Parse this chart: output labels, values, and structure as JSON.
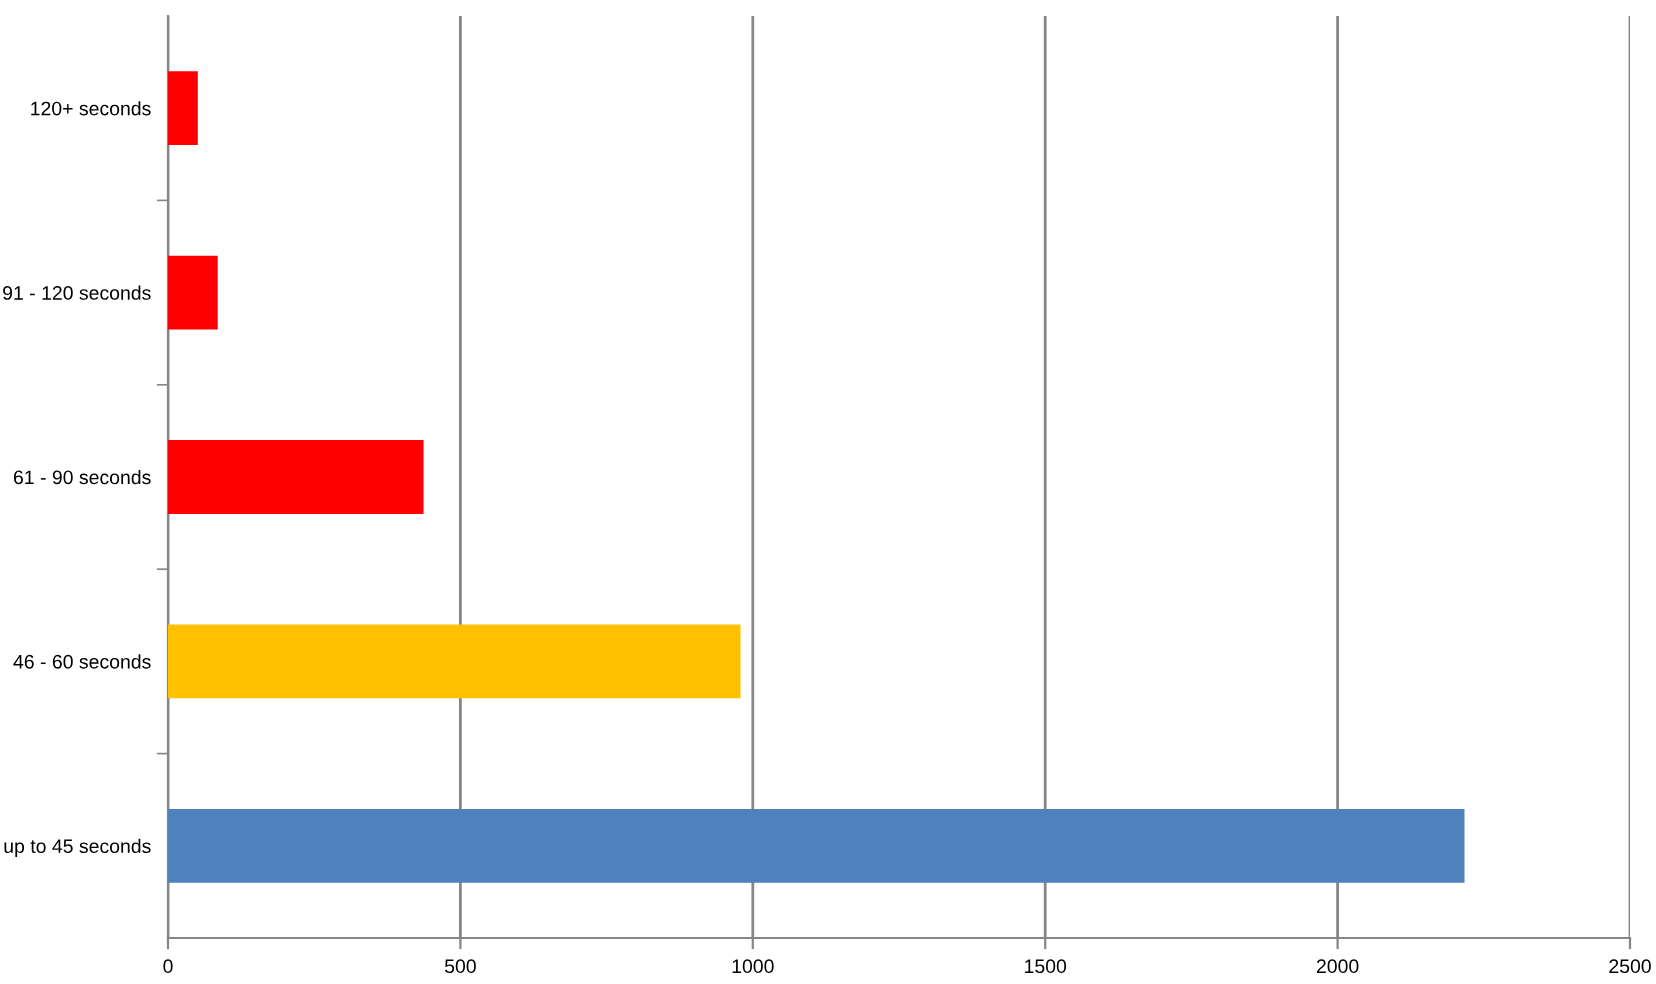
{
  "chart_data": {
    "type": "bar",
    "orientation": "horizontal",
    "categories": [
      "120+ seconds",
      "91 - 120 seconds",
      "61 - 90 seconds",
      "46 - 60 seconds",
      "up to 45 seconds"
    ],
    "values": [
      51,
      85,
      437,
      979,
      2217
    ],
    "colors": [
      "#ff0000",
      "#ff0000",
      "#ff0000",
      "#ffc000",
      "#4f81bd"
    ],
    "xlim": [
      0,
      2500
    ],
    "xticks": [
      0,
      500,
      1000,
      1500,
      2000,
      2500
    ],
    "grid": "x"
  }
}
